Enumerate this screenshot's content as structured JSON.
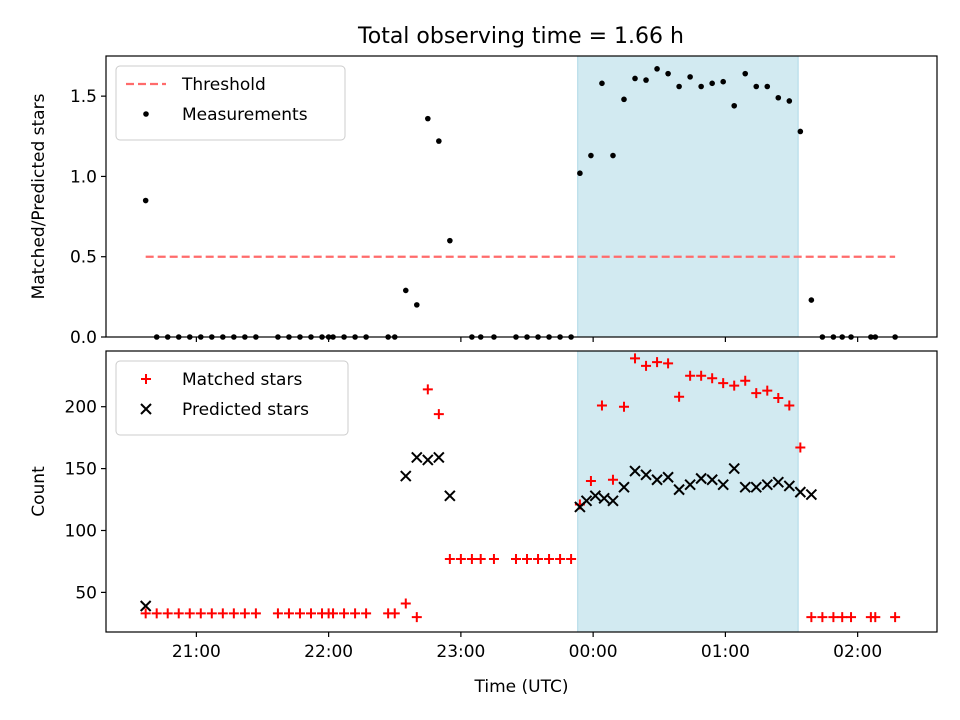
{
  "title": "Total observing time = 1.66 h",
  "chart_data": [
    {
      "type": "scatter",
      "ylabel": "Matched/Predicted stars",
      "xlabel": "",
      "ylim": [
        0,
        1.75
      ],
      "xlim": [
        "20:19",
        "02:36"
      ],
      "yticks": [
        {
          "value": 0.0,
          "label": "0.0"
        },
        {
          "value": 0.5,
          "label": "0.5"
        },
        {
          "value": 1.0,
          "label": "1.0"
        },
        {
          "value": 1.5,
          "label": "1.5"
        }
      ],
      "xticks": [
        "21:00",
        "22:00",
        "23:00",
        "00:00",
        "01:00",
        "02:00"
      ],
      "xtick_labels_visible": false,
      "shaded_interval": {
        "start": "23:53",
        "end": "01:33",
        "color": "#add8e6"
      },
      "legend": {
        "placement": "top-left",
        "entries": [
          "Threshold",
          "Measurements"
        ]
      },
      "threshold": {
        "name": "Threshold",
        "value": 0.5,
        "x": [
          "20:37",
          "02:17"
        ],
        "color": "#ff6b6b",
        "style": "dashed"
      },
      "series": [
        {
          "name": "Measurements",
          "color": "#000000",
          "marker": "dot",
          "points": [
            [
              "20:37",
              0.85
            ],
            [
              "20:42",
              0.0
            ],
            [
              "20:47",
              0.0
            ],
            [
              "20:52",
              0.0
            ],
            [
              "20:57",
              0.0
            ],
            [
              "21:02",
              0.0
            ],
            [
              "21:07",
              0.0
            ],
            [
              "21:12",
              0.0
            ],
            [
              "21:17",
              0.0
            ],
            [
              "21:22",
              0.0
            ],
            [
              "21:27",
              0.0
            ],
            [
              "21:37",
              0.0
            ],
            [
              "21:42",
              0.0
            ],
            [
              "21:47",
              0.0
            ],
            [
              "21:52",
              0.0
            ],
            [
              "21:57",
              0.0
            ],
            [
              "22:00",
              0.0
            ],
            [
              "22:02",
              0.0
            ],
            [
              "22:07",
              0.0
            ],
            [
              "22:12",
              0.0
            ],
            [
              "22:17",
              0.0
            ],
            [
              "22:27",
              0.0
            ],
            [
              "22:30",
              0.0
            ],
            [
              "22:35",
              0.29
            ],
            [
              "22:40",
              0.2
            ],
            [
              "22:45",
              1.36
            ],
            [
              "22:50",
              1.22
            ],
            [
              "22:55",
              0.6
            ],
            [
              "23:05",
              0.0
            ],
            [
              "23:09",
              0.0
            ],
            [
              "23:15",
              0.0
            ],
            [
              "23:25",
              0.0
            ],
            [
              "23:30",
              0.0
            ],
            [
              "23:35",
              0.0
            ],
            [
              "23:40",
              0.0
            ],
            [
              "23:45",
              0.0
            ],
            [
              "23:50",
              0.0
            ],
            [
              "23:54",
              1.02
            ],
            [
              "23:59",
              1.13
            ],
            [
              "00:04",
              1.58
            ],
            [
              "00:09",
              1.13
            ],
            [
              "00:14",
              1.48
            ],
            [
              "00:19",
              1.61
            ],
            [
              "00:24",
              1.6
            ],
            [
              "00:29",
              1.67
            ],
            [
              "00:34",
              1.64
            ],
            [
              "00:39",
              1.56
            ],
            [
              "00:44",
              1.62
            ],
            [
              "00:49",
              1.56
            ],
            [
              "00:54",
              1.58
            ],
            [
              "00:59",
              1.59
            ],
            [
              "01:04",
              1.44
            ],
            [
              "01:09",
              1.64
            ],
            [
              "01:14",
              1.56
            ],
            [
              "01:19",
              1.56
            ],
            [
              "01:24",
              1.49
            ],
            [
              "01:29",
              1.47
            ],
            [
              "01:34",
              1.28
            ],
            [
              "01:39",
              0.23
            ],
            [
              "01:44",
              0.0
            ],
            [
              "01:49",
              0.0
            ],
            [
              "01:53",
              0.0
            ],
            [
              "01:57",
              0.0
            ],
            [
              "02:06",
              0.0
            ],
            [
              "02:08",
              0.0
            ],
            [
              "02:17",
              0.0
            ]
          ]
        }
      ]
    },
    {
      "type": "scatter",
      "ylabel": "Count",
      "xlabel": "Time (UTC)",
      "ylim": [
        18,
        245
      ],
      "xlim": [
        "20:19",
        "02:36"
      ],
      "yticks": [
        {
          "value": 50,
          "label": "50"
        },
        {
          "value": 100,
          "label": "100"
        },
        {
          "value": 150,
          "label": "150"
        },
        {
          "value": 200,
          "label": "200"
        }
      ],
      "xticks": [
        "21:00",
        "22:00",
        "23:00",
        "00:00",
        "01:00",
        "02:00"
      ],
      "xtick_labels_visible": true,
      "shaded_interval": {
        "start": "23:53",
        "end": "01:33",
        "color": "#add8e6"
      },
      "legend": {
        "placement": "top-left",
        "entries": [
          "Matched stars",
          "Predicted stars"
        ]
      },
      "series": [
        {
          "name": "Matched stars",
          "color": "#ff0000",
          "marker": "plus",
          "points": [
            [
              "20:37",
              33
            ],
            [
              "20:42",
              33
            ],
            [
              "20:47",
              33
            ],
            [
              "20:52",
              33
            ],
            [
              "20:57",
              33
            ],
            [
              "21:02",
              33
            ],
            [
              "21:07",
              33
            ],
            [
              "21:12",
              33
            ],
            [
              "21:17",
              33
            ],
            [
              "21:22",
              33
            ],
            [
              "21:27",
              33
            ],
            [
              "21:37",
              33
            ],
            [
              "21:42",
              33
            ],
            [
              "21:47",
              33
            ],
            [
              "21:52",
              33
            ],
            [
              "21:57",
              33
            ],
            [
              "22:00",
              33
            ],
            [
              "22:02",
              33
            ],
            [
              "22:07",
              33
            ],
            [
              "22:12",
              33
            ],
            [
              "22:17",
              33
            ],
            [
              "22:27",
              33
            ],
            [
              "22:30",
              33
            ],
            [
              "22:35",
              41
            ],
            [
              "22:40",
              30
            ],
            [
              "22:45",
              214
            ],
            [
              "22:50",
              194
            ],
            [
              "22:55",
              77
            ],
            [
              "23:00",
              77
            ],
            [
              "23:05",
              77
            ],
            [
              "23:09",
              77
            ],
            [
              "23:15",
              77
            ],
            [
              "23:25",
              77
            ],
            [
              "23:30",
              77
            ],
            [
              "23:35",
              77
            ],
            [
              "23:40",
              77
            ],
            [
              "23:45",
              77
            ],
            [
              "23:50",
              77
            ],
            [
              "23:54",
              121
            ],
            [
              "23:59",
              140
            ],
            [
              "00:04",
              201
            ],
            [
              "00:09",
              141
            ],
            [
              "00:14",
              200
            ],
            [
              "00:19",
              239
            ],
            [
              "00:24",
              233
            ],
            [
              "00:29",
              236
            ],
            [
              "00:34",
              235
            ],
            [
              "00:39",
              208
            ],
            [
              "00:44",
              225
            ],
            [
              "00:49",
              225
            ],
            [
              "00:54",
              223
            ],
            [
              "00:59",
              219
            ],
            [
              "01:04",
              217
            ],
            [
              "01:09",
              221
            ],
            [
              "01:14",
              211
            ],
            [
              "01:19",
              213
            ],
            [
              "01:24",
              207
            ],
            [
              "01:29",
              201
            ],
            [
              "01:34",
              167
            ],
            [
              "01:39",
              30
            ],
            [
              "01:44",
              30
            ],
            [
              "01:49",
              30
            ],
            [
              "01:53",
              30
            ],
            [
              "01:57",
              30
            ],
            [
              "02:06",
              30
            ],
            [
              "02:08",
              30
            ],
            [
              "02:17",
              30
            ]
          ]
        },
        {
          "name": "Predicted stars",
          "color": "#000000",
          "marker": "cross",
          "points": [
            [
              "20:37",
              39
            ],
            [
              "22:35",
              144
            ],
            [
              "22:40",
              159
            ],
            [
              "22:45",
              157
            ],
            [
              "22:50",
              159
            ],
            [
              "22:55",
              128
            ],
            [
              "23:54",
              119
            ],
            [
              "23:57",
              124
            ],
            [
              "24:01",
              128
            ],
            [
              "00:05",
              126
            ],
            [
              "00:09",
              124
            ],
            [
              "00:14",
              135
            ],
            [
              "00:19",
              148
            ],
            [
              "00:24",
              145
            ],
            [
              "00:29",
              141
            ],
            [
              "00:34",
              143
            ],
            [
              "00:39",
              133
            ],
            [
              "00:44",
              137
            ],
            [
              "00:49",
              142
            ],
            [
              "00:54",
              141
            ],
            [
              "00:59",
              137
            ],
            [
              "01:04",
              150
            ],
            [
              "01:09",
              135
            ],
            [
              "01:14",
              135
            ],
            [
              "01:19",
              137
            ],
            [
              "01:24",
              139
            ],
            [
              "01:29",
              136
            ],
            [
              "01:34",
              131
            ],
            [
              "01:39",
              129
            ]
          ]
        }
      ]
    }
  ]
}
